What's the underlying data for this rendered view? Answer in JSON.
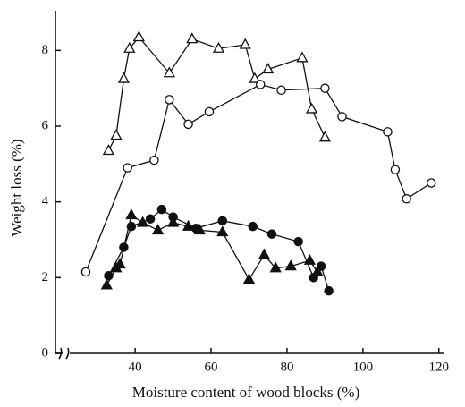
{
  "chart_data": {
    "type": "line",
    "x_label": "Moisture content of wood blocks (%)",
    "y_label": "Weight loss (%)",
    "xlim": [
      19,
      121
    ],
    "xticks": [
      40,
      60,
      80,
      100,
      120
    ],
    "ylim": [
      0,
      9
    ],
    "yticks": [
      0,
      2,
      4,
      6,
      8
    ],
    "series": [
      {
        "color": "#111111",
        "marker": "triangle",
        "filled": false,
        "x": [
          33,
          35,
          37,
          38.5,
          41,
          49,
          55,
          62,
          69,
          71.5,
          75,
          84,
          86.5,
          90
        ],
        "values": [
          5.35,
          5.75,
          7.25,
          8.05,
          8.35,
          7.4,
          8.3,
          8.05,
          8.15,
          7.25,
          7.5,
          7.8,
          6.45,
          5.7
        ]
      },
      {
        "color": "#111111",
        "marker": "circle",
        "filled": false,
        "x": [
          27,
          38,
          45,
          49,
          54,
          59.5,
          73,
          78.5,
          90,
          94.5,
          106.5,
          108.5,
          111.5,
          118
        ],
        "values": [
          2.15,
          4.9,
          5.1,
          6.7,
          6.05,
          6.38,
          7.1,
          6.95,
          7.0,
          6.25,
          5.85,
          4.85,
          4.08,
          4.5
        ]
      },
      {
        "color": "#111111",
        "marker": "circle",
        "filled": true,
        "x": [
          33,
          37,
          39,
          44,
          47,
          50,
          56,
          63,
          71,
          76,
          83,
          87,
          89,
          91
        ],
        "values": [
          2.05,
          2.8,
          3.35,
          3.55,
          3.8,
          3.6,
          3.3,
          3.5,
          3.35,
          3.15,
          2.95,
          2.0,
          2.3,
          1.65
        ]
      },
      {
        "color": "#111111",
        "marker": "triangle",
        "filled": true,
        "x": [
          32.5,
          35,
          36,
          39,
          42,
          46,
          50,
          54,
          57,
          63,
          70,
          74,
          77,
          81,
          86,
          88
        ],
        "values": [
          1.8,
          2.25,
          2.35,
          3.65,
          3.45,
          3.25,
          3.45,
          3.35,
          3.25,
          3.2,
          1.95,
          2.6,
          2.25,
          2.3,
          2.45,
          2.15
        ]
      }
    ]
  }
}
